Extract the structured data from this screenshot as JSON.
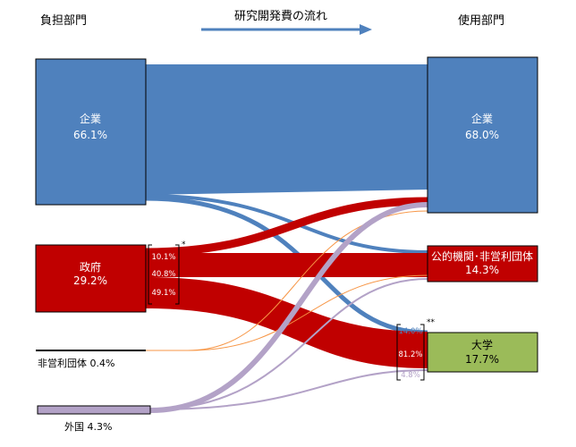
{
  "header": {
    "source_title": "負担部門",
    "flow_title": "研究開発費の流れ",
    "use_title": "使用部門"
  },
  "source": {
    "corp": {
      "name": "企業",
      "pct": "66.1%"
    },
    "gov": {
      "name": "政府",
      "pct": "29.2%",
      "breakdown": [
        "10.1%",
        "40.8%",
        "49.1%"
      ]
    },
    "npo": {
      "label": "非営利団体 0.4%"
    },
    "foreign": {
      "label": "外国 4.3%"
    }
  },
  "use": {
    "corp": {
      "name": "企業",
      "pct": "68.0%"
    },
    "public": {
      "name": "公的機関･非営利団体",
      "pct": "14.3%"
    },
    "univ": {
      "name": "大学",
      "pct": "17.7%",
      "breakdown": [
        "14.0%",
        "81.2%",
        "4.8%"
      ]
    }
  },
  "notes": {
    "gov_marker": "*",
    "univ_marker": "**"
  },
  "colors": {
    "corp": "#4f81bd",
    "gov": "#c00000",
    "npo": "#f79646",
    "foreign": "#b3a2c7",
    "univ": "#9bbb59",
    "arrow": "#4f81bd"
  }
}
